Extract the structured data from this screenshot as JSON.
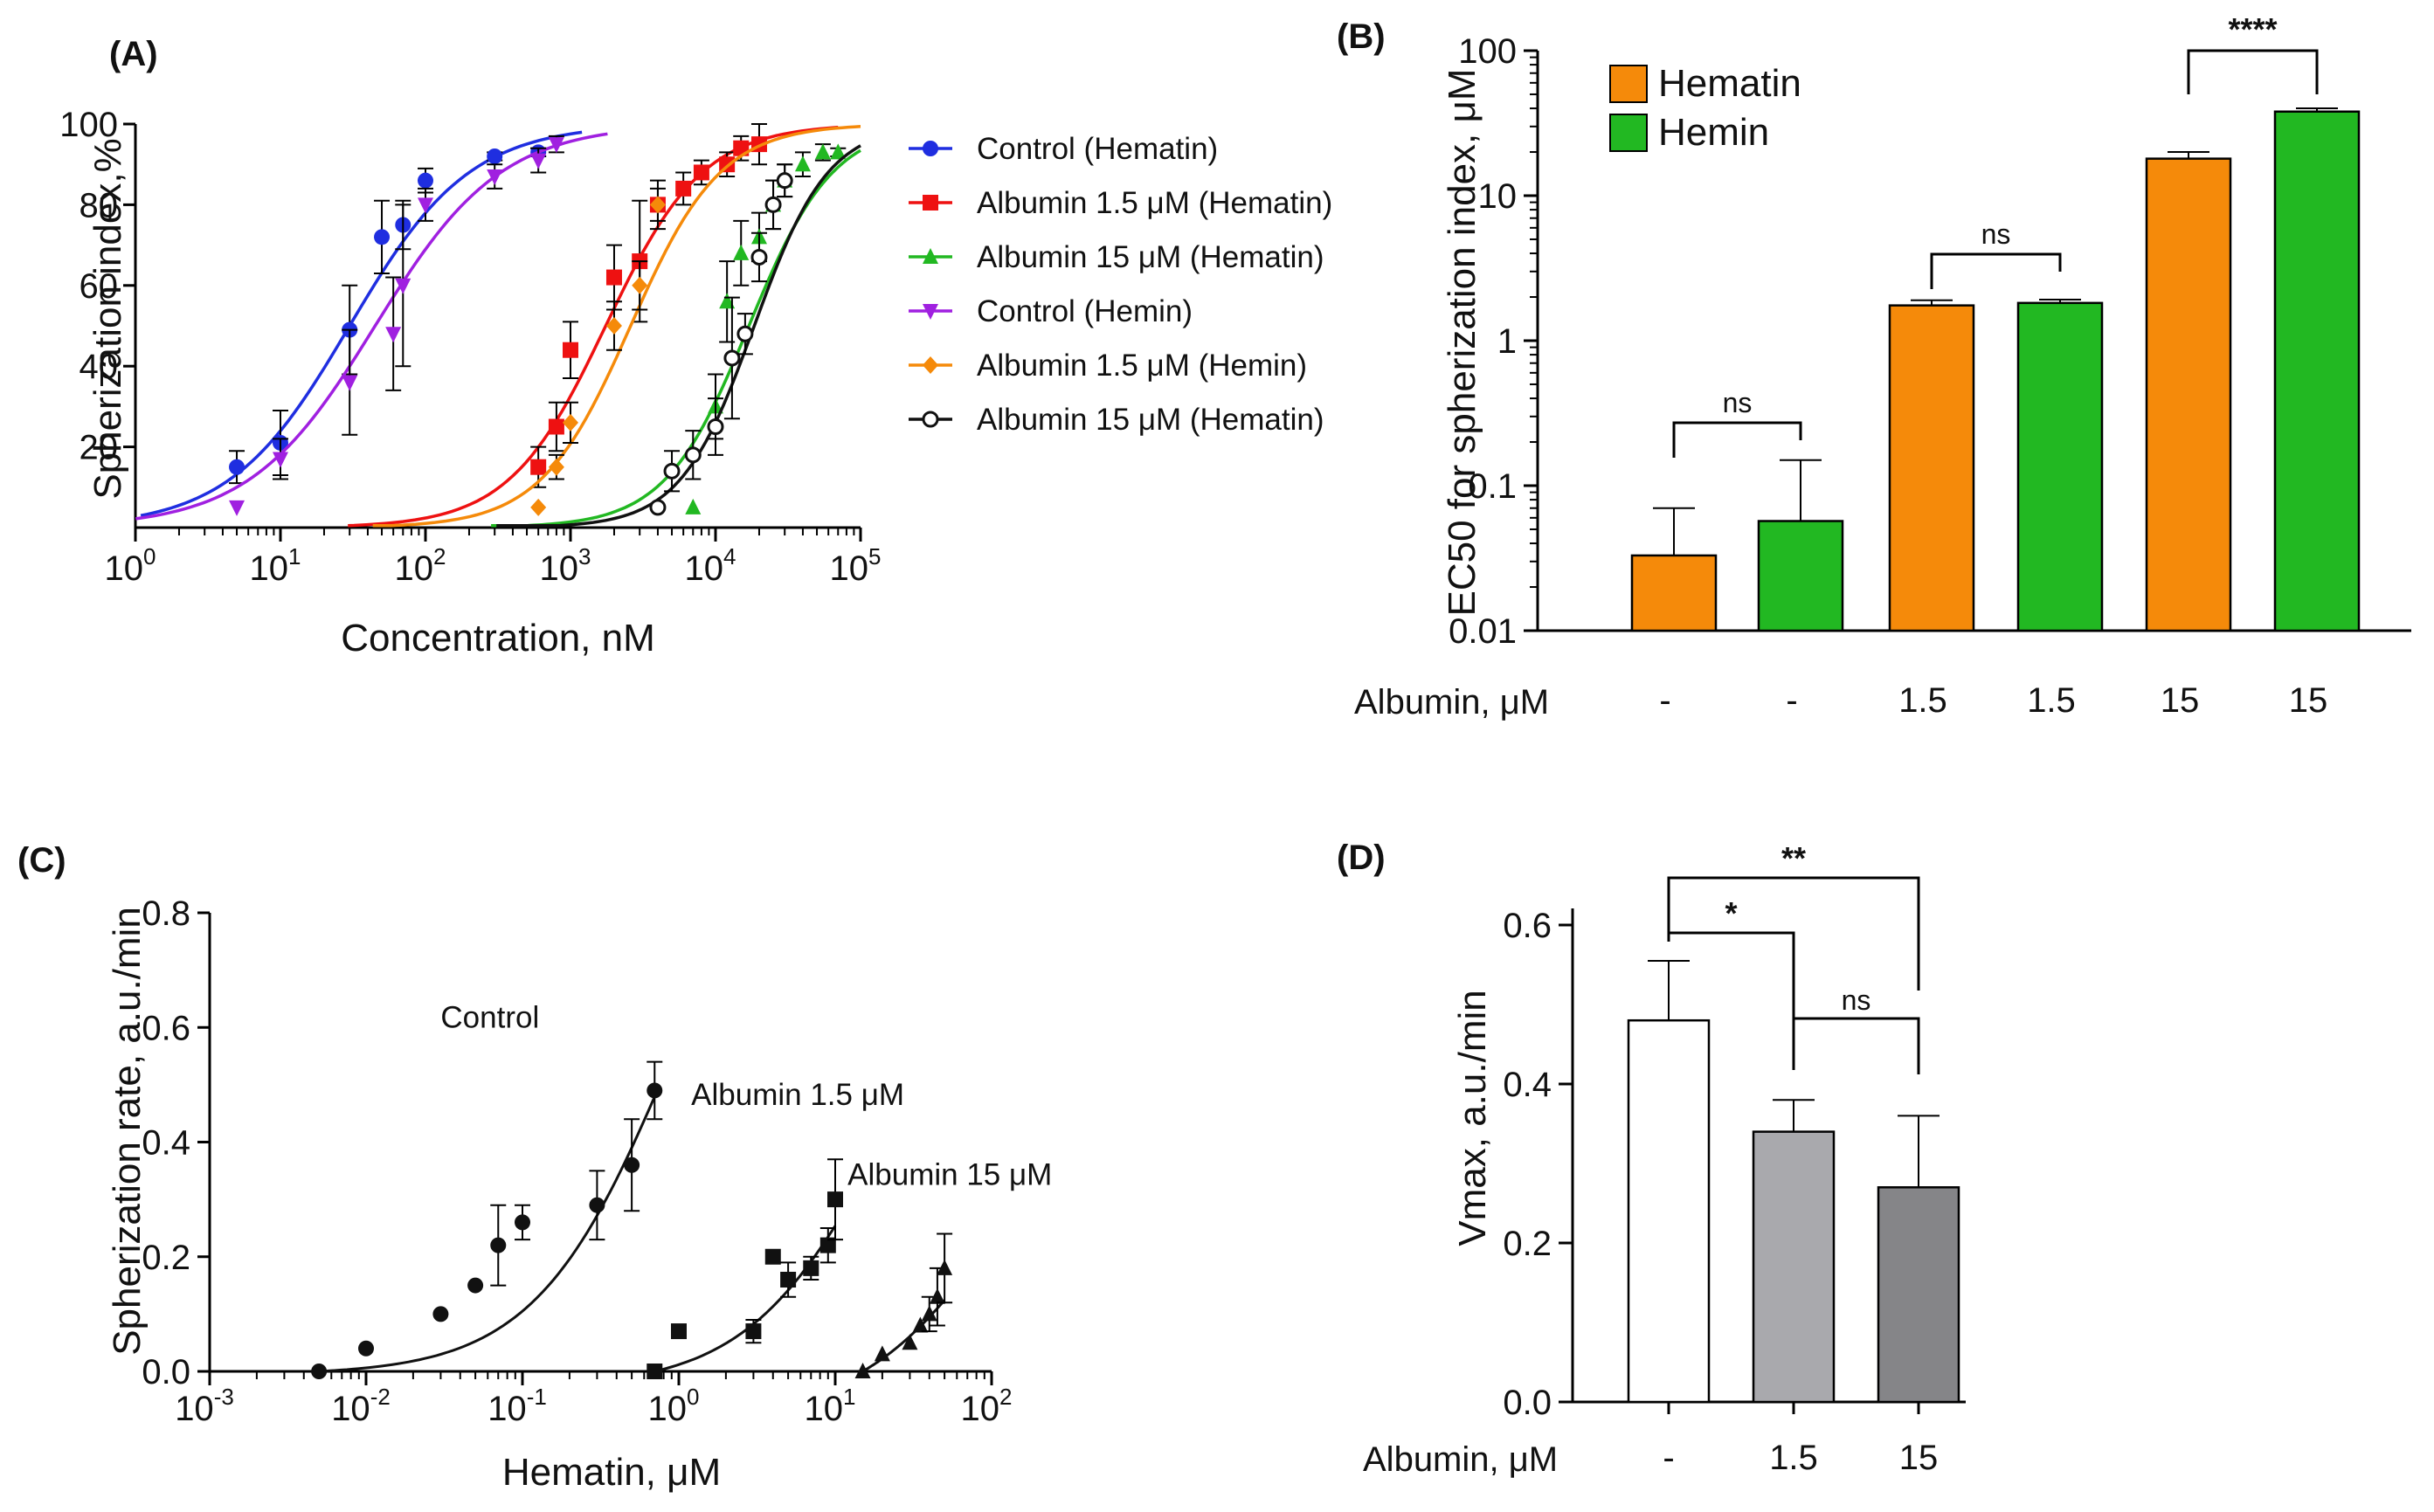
{
  "chart_data": [
    {
      "panel": "A",
      "type": "scatter",
      "panel_label": "(A)",
      "xlabel": "Concentration, nM",
      "ylabel": "Spherization index,%",
      "xscale": "log",
      "xlim": [
        1,
        100000
      ],
      "ylim": [
        0,
        100
      ],
      "xticks": [
        {
          "base": "10",
          "exp": "0"
        },
        {
          "base": "10",
          "exp": "1"
        },
        {
          "base": "10",
          "exp": "2"
        },
        {
          "base": "10",
          "exp": "3"
        },
        {
          "base": "10",
          "exp": "4"
        },
        {
          "base": "10",
          "exp": "5"
        }
      ],
      "yticks": [
        "20",
        "40",
        "60",
        "80",
        "100"
      ],
      "legend": "right",
      "series": [
        {
          "name": "Control (Hematin)",
          "color": "#1f2ee0",
          "marker": "circle",
          "fit": {
            "ec50": 30,
            "hill": 1.05
          },
          "points": [
            [
              5,
              15,
              4
            ],
            [
              10,
              21,
              8
            ],
            [
              30,
              49,
              11
            ],
            [
              50,
              72,
              9
            ],
            [
              70,
              75,
              6
            ],
            [
              100,
              86,
              3
            ],
            [
              300,
              92,
              1
            ],
            [
              600,
              93,
              1
            ]
          ]
        },
        {
          "name": "Albumin 1.5 μM (Hematin)",
          "color": "#ee1111",
          "marker": "square",
          "fit": {
            "ec50": 1750,
            "hill": 1.3
          },
          "points": [
            [
              600,
              15,
              5
            ],
            [
              800,
              25,
              6
            ],
            [
              1000,
              44,
              7
            ],
            [
              2000,
              62,
              8
            ],
            [
              3000,
              66,
              15
            ],
            [
              4000,
              80,
              6
            ],
            [
              6000,
              84,
              4
            ],
            [
              8000,
              88,
              3
            ],
            [
              12000,
              90,
              3
            ],
            [
              15000,
              94,
              3
            ],
            [
              20000,
              95,
              5
            ]
          ]
        },
        {
          "name": "Albumin 15 μM (Hematin)",
          "color": "#22b822",
          "marker": "triangle-up",
          "fit": {
            "ec50": 17000,
            "hill": 1.5
          },
          "points": [
            [
              7000,
              5,
              0
            ],
            [
              10000,
              30,
              8
            ],
            [
              12000,
              56,
              10
            ],
            [
              15000,
              68,
              8
            ],
            [
              20000,
              72,
              6
            ],
            [
              25000,
              80,
              6
            ],
            [
              30000,
              86,
              4
            ],
            [
              40000,
              90,
              3
            ],
            [
              55000,
              93,
              2
            ],
            [
              70000,
              93,
              1
            ]
          ]
        },
        {
          "name": "Control (Hemin)",
          "color": "#a020e0",
          "marker": "triangle-down",
          "fit": {
            "ec50": 45,
            "hill": 1.0
          },
          "points": [
            [
              5,
              5,
              0
            ],
            [
              10,
              17,
              5
            ],
            [
              30,
              36,
              13
            ],
            [
              60,
              48,
              14
            ],
            [
              70,
              60,
              20
            ],
            [
              100,
              80,
              4
            ],
            [
              300,
              87,
              3
            ],
            [
              600,
              91,
              3
            ],
            [
              800,
              95,
              2
            ]
          ]
        },
        {
          "name": "Albumin 1.5 μM (Hemin)",
          "color": "#f58a0a",
          "marker": "diamond",
          "fit": {
            "ec50": 2600,
            "hill": 1.4
          },
          "points": [
            [
              600,
              5,
              0
            ],
            [
              800,
              15,
              3
            ],
            [
              1000,
              26,
              5
            ],
            [
              2000,
              50,
              6
            ],
            [
              3000,
              60,
              6
            ],
            [
              4000,
              80,
              4
            ]
          ]
        },
        {
          "name": "Albumin 15 μM (Hematin)",
          "color": "#111111",
          "marker": "open-circle",
          "fit": {
            "ec50": 18500,
            "hill": 1.7
          },
          "points": [
            [
              4000,
              5,
              0
            ],
            [
              5000,
              14,
              5
            ],
            [
              7000,
              18,
              6
            ],
            [
              10000,
              25,
              7
            ],
            [
              13000,
              42,
              15
            ],
            [
              16000,
              48,
              5
            ],
            [
              20000,
              67,
              6
            ],
            [
              25000,
              80,
              6
            ],
            [
              30000,
              86,
              4
            ]
          ]
        }
      ]
    },
    {
      "panel": "B",
      "type": "bar",
      "panel_label": "(B)",
      "ylabel": "EC50 for spherization index, μM",
      "yscale": "log",
      "ylim": [
        0.01,
        100
      ],
      "yticks": [
        "0.01",
        "0.1",
        "1",
        "10",
        "100"
      ],
      "xlabel": "Albumin, μM",
      "categories": [
        "-",
        "-",
        "1.5",
        "1.5",
        "15",
        "15"
      ],
      "values": [
        0.033,
        0.057,
        1.75,
        1.82,
        18.0,
        38.0
      ],
      "errors": [
        0.037,
        0.093,
        0.15,
        0.1,
        2.0,
        2.0
      ],
      "bar_series": [
        "Hematin",
        "Hemin",
        "Hematin",
        "Hemin",
        "Hematin",
        "Hemin"
      ],
      "legend": [
        {
          "name": "Hematin",
          "color": "#f58a0a"
        },
        {
          "name": "Hemin",
          "color": "#22b822"
        }
      ],
      "legend_position": "top-left",
      "significance": [
        {
          "between": [
            0,
            1
          ],
          "label": "ns"
        },
        {
          "between": [
            2,
            3
          ],
          "label": "ns"
        },
        {
          "between": [
            4,
            5
          ],
          "label": "****"
        }
      ]
    },
    {
      "panel": "C",
      "type": "scatter",
      "panel_label": "(C)",
      "xlabel": "Hematin,  μM",
      "ylabel": "Spherization rate, a.u./min",
      "xscale": "log",
      "xlim": [
        0.001,
        100
      ],
      "ylim": [
        0,
        0.8
      ],
      "xticks": [
        {
          "base": "10",
          "exp": "-3"
        },
        {
          "base": "10",
          "exp": "-2"
        },
        {
          "base": "10",
          "exp": "-1"
        },
        {
          "base": "10",
          "exp": "0"
        },
        {
          "base": "10",
          "exp": "1"
        },
        {
          "base": "10",
          "exp": "2"
        }
      ],
      "yticks": [
        "0.0",
        "0.2",
        "0.4",
        "0.6",
        "0.8"
      ],
      "series": [
        {
          "name": "Control",
          "marker": "circle",
          "label_pos": [
            0.03,
            0.6
          ],
          "fit": {
            "vmax": 1.1,
            "km": 0.9,
            "x0": 0.005,
            "x1": 0.7
          },
          "points": [
            [
              0.005,
              0.0,
              0
            ],
            [
              0.01,
              0.04,
              0
            ],
            [
              0.03,
              0.1,
              0
            ],
            [
              0.05,
              0.15,
              0
            ],
            [
              0.07,
              0.22,
              0.07
            ],
            [
              0.1,
              0.26,
              0.03
            ],
            [
              0.3,
              0.29,
              0.06
            ],
            [
              0.5,
              0.36,
              0.08
            ],
            [
              0.7,
              0.49,
              0.05
            ]
          ]
        },
        {
          "name": "Albumin 1.5 μM",
          "marker": "square",
          "label_pos": [
            1.2,
            0.465
          ],
          "fit": {
            "vmax": 0.8,
            "km": 20,
            "x0": 0.7,
            "x1": 10
          },
          "points": [
            [
              0.7,
              0.0,
              0
            ],
            [
              1,
              0.07,
              0
            ],
            [
              3,
              0.07,
              0.02
            ],
            [
              4,
              0.2,
              0
            ],
            [
              5,
              0.16,
              0.03
            ],
            [
              7,
              0.18,
              0.02
            ],
            [
              9,
              0.22,
              0.03
            ],
            [
              10,
              0.3,
              0.07
            ]
          ]
        },
        {
          "name": "Albumin 15 μM",
          "marker": "triangle-up",
          "label_pos": [
            12,
            0.325
          ],
          "fit": {
            "vmax": 0.55,
            "km": 120,
            "x0": 15,
            "x1": 50
          },
          "points": [
            [
              15,
              0.0,
              0
            ],
            [
              20,
              0.03,
              0
            ],
            [
              30,
              0.05,
              0
            ],
            [
              35,
              0.08,
              0
            ],
            [
              40,
              0.1,
              0.03
            ],
            [
              45,
              0.13,
              0.05
            ],
            [
              50,
              0.18,
              0.06
            ]
          ]
        }
      ]
    },
    {
      "panel": "D",
      "type": "bar",
      "panel_label": "(D)",
      "ylabel": "Vmax, a.u./min",
      "xlabel": "Albumin, μM",
      "ylim": [
        0,
        0.6
      ],
      "yticks": [
        "0.0",
        "0.2",
        "0.4",
        "0.6"
      ],
      "categories": [
        "-",
        "1.5",
        "15"
      ],
      "values": [
        0.48,
        0.34,
        0.27
      ],
      "errors": [
        0.075,
        0.04,
        0.09
      ],
      "colors": [
        "#ffffff",
        "#a9a9ad",
        "#858588"
      ],
      "significance": [
        {
          "between": [
            0,
            2
          ],
          "label": "**"
        },
        {
          "between": [
            0,
            1
          ],
          "label": "*"
        },
        {
          "between": [
            1,
            2
          ],
          "label": "ns"
        }
      ]
    }
  ]
}
